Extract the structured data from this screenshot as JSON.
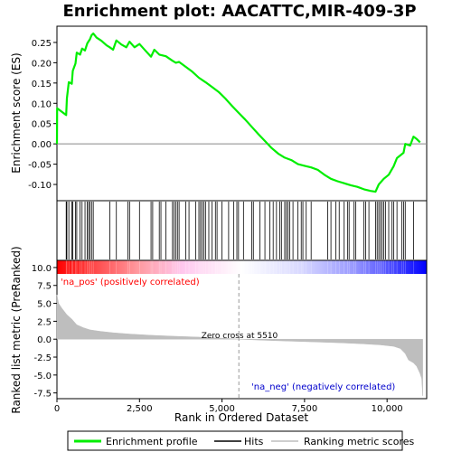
{
  "chart_data": {
    "type": "line",
    "title": "Enrichment plot: AACATTC,MIR-409-3P",
    "xlabel": "Rank in Ordered Dataset",
    "x_ticks": [
      0,
      2500,
      5000,
      7500,
      10000
    ],
    "x_tick_labels": [
      "0",
      "2,500",
      "5,000",
      "7,500",
      "10,000"
    ],
    "xlim": [
      0,
      11200
    ],
    "es_panel": {
      "ylabel": "Enrichment score (ES)",
      "ylim": [
        -0.14,
        0.29
      ],
      "y_ticks": [
        -0.1,
        -0.05,
        0.0,
        0.05,
        0.1,
        0.15,
        0.2,
        0.25
      ],
      "y_tick_labels": [
        "-0.10",
        "-0.05",
        "0.00",
        "0.05",
        "0.10",
        "0.15",
        "0.20",
        "0.25"
      ],
      "grid": false,
      "series": [
        {
          "name": "Enrichment profile",
          "color": "#00ee00",
          "points": [
            [
              0,
              0.0
            ],
            [
              5,
              0.088
            ],
            [
              280,
              0.071
            ],
            [
              300,
              0.112
            ],
            [
              360,
              0.152
            ],
            [
              450,
              0.148
            ],
            [
              480,
              0.18
            ],
            [
              560,
              0.198
            ],
            [
              600,
              0.225
            ],
            [
              700,
              0.22
            ],
            [
              760,
              0.235
            ],
            [
              850,
              0.23
            ],
            [
              920,
              0.248
            ],
            [
              1000,
              0.258
            ],
            [
              1050,
              0.268
            ],
            [
              1100,
              0.272
            ],
            [
              1200,
              0.262
            ],
            [
              1350,
              0.254
            ],
            [
              1500,
              0.243
            ],
            [
              1600,
              0.238
            ],
            [
              1700,
              0.232
            ],
            [
              1800,
              0.255
            ],
            [
              1950,
              0.245
            ],
            [
              2100,
              0.238
            ],
            [
              2200,
              0.252
            ],
            [
              2350,
              0.238
            ],
            [
              2500,
              0.246
            ],
            [
              2700,
              0.228
            ],
            [
              2850,
              0.215
            ],
            [
              2950,
              0.232
            ],
            [
              3100,
              0.22
            ],
            [
              3300,
              0.216
            ],
            [
              3500,
              0.205
            ],
            [
              3600,
              0.2
            ],
            [
              3700,
              0.202
            ],
            [
              3900,
              0.19
            ],
            [
              4100,
              0.178
            ],
            [
              4300,
              0.163
            ],
            [
              4500,
              0.152
            ],
            [
              4700,
              0.14
            ],
            [
              4900,
              0.128
            ],
            [
              5100,
              0.112
            ],
            [
              5300,
              0.094
            ],
            [
              5500,
              0.077
            ],
            [
              5700,
              0.06
            ],
            [
              5900,
              0.042
            ],
            [
              6100,
              0.024
            ],
            [
              6300,
              0.007
            ],
            [
              6500,
              -0.01
            ],
            [
              6700,
              -0.024
            ],
            [
              6900,
              -0.034
            ],
            [
              7100,
              -0.04
            ],
            [
              7300,
              -0.05
            ],
            [
              7500,
              -0.054
            ],
            [
              7700,
              -0.058
            ],
            [
              7900,
              -0.064
            ],
            [
              8100,
              -0.076
            ],
            [
              8300,
              -0.086
            ],
            [
              8500,
              -0.092
            ],
            [
              8700,
              -0.097
            ],
            [
              8900,
              -0.102
            ],
            [
              9100,
              -0.106
            ],
            [
              9300,
              -0.112
            ],
            [
              9500,
              -0.116
            ],
            [
              9650,
              -0.118
            ],
            [
              9750,
              -0.1
            ],
            [
              9900,
              -0.086
            ],
            [
              10050,
              -0.076
            ],
            [
              10200,
              -0.055
            ],
            [
              10300,
              -0.035
            ],
            [
              10500,
              -0.022
            ],
            [
              10550,
              0.0
            ],
            [
              10700,
              -0.004
            ],
            [
              10800,
              0.018
            ],
            [
              10900,
              0.012
            ],
            [
              11000,
              0.004
            ]
          ]
        }
      ]
    },
    "hits_panel": {
      "legend_entry": "Hits",
      "hit_ranks": [
        280,
        300,
        360,
        450,
        480,
        560,
        600,
        700,
        760,
        850,
        920,
        960,
        1000,
        1050,
        1100,
        1600,
        1800,
        2150,
        2200,
        2500,
        2850,
        2900,
        3100,
        3150,
        3300,
        3500,
        3550,
        3600,
        3650,
        3700,
        3900,
        4000,
        4200,
        4300,
        4350,
        4400,
        4450,
        4500,
        4600,
        4700,
        4800,
        4850,
        5000,
        5200,
        5350,
        5450,
        5500,
        5650,
        5900,
        5950,
        6150,
        6300,
        6450,
        6550,
        6650,
        6750,
        6800,
        6900,
        6950,
        7000,
        7050,
        7150,
        7300,
        7400,
        7450,
        7550,
        7700,
        8200,
        8300,
        8450,
        8550,
        8700,
        8800,
        8850,
        9000,
        9050,
        9300,
        9350,
        9450,
        9650,
        9700,
        9750,
        9800,
        9850,
        9900,
        9950,
        10050,
        10150,
        10200,
        10300,
        10450,
        10500,
        10550,
        10800
      ]
    },
    "ranking_bar": {
      "pos_color": "#ff0000",
      "mid_color": "#ffffff",
      "neg_color": "#0000ff"
    },
    "metric_panel": {
      "ylabel": "Ranked list metric (PreRanked)",
      "ylim": [
        -8.3,
        11.0
      ],
      "y_ticks": [
        -7.5,
        -5.0,
        -2.5,
        0.0,
        2.5,
        5.0,
        7.5,
        10.0
      ],
      "y_tick_labels": [
        "-7.5",
        "-5.0",
        "-2.5",
        "0.0",
        "2.5",
        "5.0",
        "7.5",
        "10.0"
      ],
      "zero_cross_rank": 5510,
      "zero_cross_label": "Zero cross at 5510",
      "pos_label": "'na_pos' (positively correlated)",
      "neg_label": "'na_neg' (negatively correlated)",
      "series_name": "Ranking metric scores",
      "fill_color": "#bebebe",
      "profile": [
        [
          0,
          6.2
        ],
        [
          50,
          5.0
        ],
        [
          150,
          4.3
        ],
        [
          300,
          3.4
        ],
        [
          450,
          2.8
        ],
        [
          600,
          2.0
        ],
        [
          800,
          1.6
        ],
        [
          1000,
          1.3
        ],
        [
          1300,
          1.1
        ],
        [
          1700,
          0.9
        ],
        [
          2200,
          0.72
        ],
        [
          2800,
          0.55
        ],
        [
          3500,
          0.42
        ],
        [
          4200,
          0.3
        ],
        [
          4900,
          0.16
        ],
        [
          5510,
          0.0
        ],
        [
          6200,
          -0.14
        ],
        [
          7000,
          -0.26
        ],
        [
          7800,
          -0.38
        ],
        [
          8600,
          -0.5
        ],
        [
          9300,
          -0.65
        ],
        [
          9800,
          -0.8
        ],
        [
          10200,
          -1.0
        ],
        [
          10400,
          -1.3
        ],
        [
          10550,
          -2.0
        ],
        [
          10650,
          -2.9
        ],
        [
          10800,
          -3.3
        ],
        [
          10900,
          -3.8
        ],
        [
          11000,
          -4.8
        ],
        [
          11050,
          -5.5
        ],
        [
          11080,
          -7.9
        ]
      ]
    },
    "legend": {
      "items": [
        "Enrichment profile",
        "Hits",
        "Ranking metric scores"
      ],
      "placement": "bottom"
    }
  }
}
